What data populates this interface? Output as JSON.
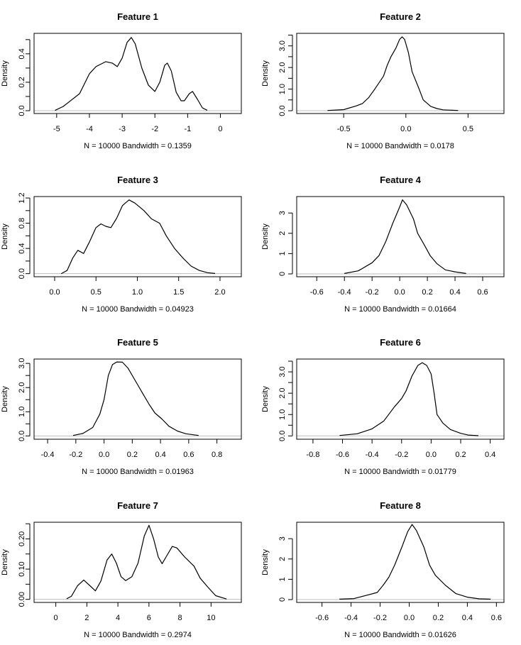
{
  "chart_data": [
    {
      "type": "line",
      "title": "Feature  1",
      "xlabel": "N = 10000   Bandwidth = 0.1359",
      "ylabel": "Density",
      "xlim": [
        -5.69,
        0.64
      ],
      "ylim": [
        -0.02,
        0.544
      ],
      "xticks": [
        -5,
        -4,
        -3,
        -2,
        -1,
        0
      ],
      "xticklabels": [
        "-5",
        "-4",
        "-3",
        "-2",
        "-1",
        "0"
      ],
      "yticks": [
        0,
        0.1,
        0.2,
        0.3,
        0.4,
        0.5
      ],
      "yticklabels": [
        "0.0",
        "",
        "0.2",
        "",
        "0.4",
        ""
      ],
      "x": [
        -5.05,
        -4.8,
        -4.6,
        -4.3,
        -4.0,
        -3.8,
        -3.5,
        -3.3,
        -3.15,
        -3.0,
        -2.85,
        -2.72,
        -2.6,
        -2.4,
        -2.2,
        -2.0,
        -1.85,
        -1.7,
        -1.62,
        -1.5,
        -1.35,
        -1.2,
        -1.1,
        -0.95,
        -0.85,
        -0.7,
        -0.55,
        -0.4
      ],
      "y": [
        0.002,
        0.03,
        0.066,
        0.12,
        0.26,
        0.31,
        0.345,
        0.335,
        0.31,
        0.37,
        0.48,
        0.515,
        0.47,
        0.3,
        0.18,
        0.135,
        0.2,
        0.32,
        0.335,
        0.28,
        0.13,
        0.07,
        0.07,
        0.12,
        0.135,
        0.08,
        0.02,
        0.003
      ]
    },
    {
      "type": "line",
      "title": "Feature  2",
      "xlabel": "N = 10000   Bandwidth = 0.0178",
      "ylabel": "Density",
      "xlim": [
        -0.878,
        0.789
      ],
      "ylim": [
        -0.13,
        3.58
      ],
      "xticks": [
        -0.5,
        0,
        0.5
      ],
      "xticklabels": [
        "-0.5",
        "0.0",
        "0.5"
      ],
      "yticks": [
        0,
        0.5,
        1,
        1.5,
        2,
        2.5,
        3,
        3.5
      ],
      "yticklabels": [
        "0.0",
        "",
        "1.0",
        "",
        "2.0",
        "",
        "3.0",
        ""
      ],
      "x": [
        -0.63,
        -0.5,
        -0.4,
        -0.35,
        -0.3,
        -0.25,
        -0.18,
        -0.15,
        -0.12,
        -0.08,
        -0.05,
        -0.03,
        -0.01,
        0.02,
        0.05,
        0.1,
        0.14,
        0.2,
        0.25,
        0.3,
        0.42
      ],
      "y": [
        0.01,
        0.05,
        0.22,
        0.33,
        0.6,
        1.0,
        1.6,
        2.1,
        2.5,
        2.9,
        3.3,
        3.42,
        3.3,
        2.7,
        1.8,
        1.1,
        0.5,
        0.2,
        0.1,
        0.04,
        0.01
      ]
    },
    {
      "type": "line",
      "title": "Feature  3",
      "xlabel": "N = 10000   Bandwidth = 0.04923",
      "ylabel": "Density",
      "xlim": [
        -0.249,
        2.258
      ],
      "ylim": [
        -0.049,
        1.223
      ],
      "xticks": [
        0,
        0.5,
        1,
        1.5,
        2
      ],
      "xticklabels": [
        "0.0",
        "0.5",
        "1.0",
        "1.5",
        "2.0"
      ],
      "yticks": [
        0,
        0.2,
        0.4,
        0.6,
        0.8,
        1.0,
        1.2
      ],
      "yticklabels": [
        "0.0",
        "",
        "0.4",
        "",
        "0.8",
        "",
        "1.2"
      ],
      "x": [
        0.08,
        0.15,
        0.22,
        0.28,
        0.35,
        0.42,
        0.5,
        0.56,
        0.62,
        0.68,
        0.75,
        0.82,
        0.9,
        0.97,
        1.08,
        1.17,
        1.27,
        1.35,
        1.45,
        1.55,
        1.65,
        1.75,
        1.85,
        1.94
      ],
      "y": [
        0,
        0.05,
        0.25,
        0.37,
        0.32,
        0.5,
        0.73,
        0.79,
        0.75,
        0.73,
        0.88,
        1.08,
        1.17,
        1.12,
        1.0,
        0.87,
        0.8,
        0.6,
        0.4,
        0.25,
        0.12,
        0.05,
        0.015,
        0.003
      ]
    },
    {
      "type": "line",
      "title": "Feature  4",
      "xlabel": "N = 10000   Bandwidth = 0.01664",
      "ylabel": "Density",
      "xlim": [
        -0.745,
        0.754
      ],
      "ylim": [
        -0.14,
        3.81
      ],
      "xticks": [
        -0.6,
        -0.4,
        -0.2,
        0,
        0.2,
        0.4,
        0.6
      ],
      "xticklabels": [
        "-0.6",
        "-0.4",
        "-0.2",
        "0.0",
        "0.2",
        "0.4",
        "0.6"
      ],
      "yticks": [
        0,
        1,
        2,
        3
      ],
      "yticklabels": [
        "0",
        "1",
        "2",
        "3"
      ],
      "x": [
        -0.4,
        -0.3,
        -0.2,
        -0.15,
        -0.1,
        -0.05,
        0,
        0.02,
        0.05,
        0.1,
        0.13,
        0.18,
        0.22,
        0.27,
        0.33,
        0.4,
        0.48
      ],
      "y": [
        0.02,
        0.15,
        0.55,
        0.9,
        1.6,
        2.5,
        3.3,
        3.65,
        3.4,
        2.7,
        2.0,
        1.4,
        0.9,
        0.5,
        0.2,
        0.1,
        0.02
      ]
    },
    {
      "type": "line",
      "title": "Feature  5",
      "xlabel": "N = 10000   Bandwidth = 0.01963",
      "ylabel": "Density",
      "xlim": [
        -0.496,
        0.973
      ],
      "ylim": [
        -0.137,
        3.18
      ],
      "xticks": [
        -0.4,
        -0.2,
        0,
        0.2,
        0.4,
        0.6,
        0.8
      ],
      "xticklabels": [
        "-0.4",
        "-0.2",
        "0.0",
        "0.2",
        "0.4",
        "0.6",
        "0.8"
      ],
      "yticks": [
        0,
        0.5,
        1,
        1.5,
        2,
        2.5,
        3
      ],
      "yticklabels": [
        "0.0",
        "",
        "1.0",
        "",
        "2.0",
        "",
        "3.0"
      ],
      "x": [
        -0.22,
        -0.15,
        -0.08,
        -0.03,
        0,
        0.03,
        0.06,
        0.09,
        0.13,
        0.17,
        0.22,
        0.28,
        0.32,
        0.36,
        0.41,
        0.46,
        0.52,
        0.58,
        0.67
      ],
      "y": [
        0.02,
        0.1,
        0.35,
        0.9,
        1.5,
        2.5,
        2.95,
        3.06,
        3.05,
        2.8,
        2.3,
        1.7,
        1.3,
        0.95,
        0.7,
        0.4,
        0.2,
        0.09,
        0.02
      ]
    },
    {
      "type": "line",
      "title": "Feature  6",
      "xlabel": "N = 10000   Bandwidth = 0.01779",
      "ylabel": "Density",
      "xlim": [
        -0.91,
        0.493
      ],
      "ylim": [
        -0.156,
        3.6
      ],
      "xticks": [
        -0.8,
        -0.6,
        -0.4,
        -0.2,
        0,
        0.2,
        0.4
      ],
      "xticklabels": [
        "-0.8",
        "-0.6",
        "-0.4",
        "-0.2",
        "0.0",
        "0.2",
        "0.4"
      ],
      "yticks": [
        0,
        0.5,
        1,
        1.5,
        2,
        2.5,
        3,
        3.5
      ],
      "yticklabels": [
        "0.0",
        "",
        "1.0",
        "",
        "2.0",
        "",
        "3.0",
        ""
      ],
      "x": [
        -0.62,
        -0.5,
        -0.4,
        -0.32,
        -0.25,
        -0.2,
        -0.17,
        -0.13,
        -0.09,
        -0.06,
        -0.03,
        0,
        0.02,
        0.04,
        0.08,
        0.13,
        0.2,
        0.25,
        0.32
      ],
      "y": [
        0.02,
        0.1,
        0.33,
        0.7,
        1.35,
        1.75,
        2.1,
        2.8,
        3.3,
        3.43,
        3.3,
        2.9,
        2.0,
        1.0,
        0.6,
        0.3,
        0.12,
        0.04,
        0.01
      ]
    },
    {
      "type": "line",
      "title": "Feature  7",
      "xlabel": "N = 10000   Bandwidth = 0.2974",
      "ylabel": "Density",
      "xlim": [
        -1.4,
        11.95
      ],
      "ylim": [
        -0.0102,
        0.255
      ],
      "xticks": [
        0,
        2,
        4,
        6,
        8,
        10
      ],
      "xticklabels": [
        "0",
        "2",
        "4",
        "6",
        "8",
        "10"
      ],
      "yticks": [
        0,
        0.05,
        0.1,
        0.15,
        0.2,
        0.25
      ],
      "yticklabels": [
        "0.00",
        "",
        "0.10",
        "",
        "0.20",
        ""
      ],
      "x": [
        0.7,
        1.0,
        1.4,
        1.8,
        2.2,
        2.55,
        2.9,
        3.3,
        3.6,
        3.9,
        4.2,
        4.5,
        4.9,
        5.3,
        5.7,
        6.0,
        6.3,
        6.6,
        6.85,
        7.1,
        7.5,
        7.8,
        8.3,
        8.9,
        9.3,
        9.8,
        10.3,
        11.0
      ],
      "y": [
        0.002,
        0.01,
        0.045,
        0.064,
        0.045,
        0.028,
        0.06,
        0.13,
        0.15,
        0.12,
        0.075,
        0.062,
        0.075,
        0.12,
        0.21,
        0.245,
        0.2,
        0.14,
        0.118,
        0.14,
        0.175,
        0.17,
        0.14,
        0.11,
        0.07,
        0.04,
        0.012,
        0.001
      ]
    },
    {
      "type": "line",
      "title": "Feature  8",
      "xlabel": "N = 10000   Bandwidth = 0.01626",
      "ylabel": "Density",
      "xlim": [
        -0.774,
        0.652
      ],
      "ylim": [
        -0.14,
        3.81
      ],
      "xticks": [
        -0.6,
        -0.4,
        -0.2,
        0,
        0.2,
        0.4,
        0.6
      ],
      "xticklabels": [
        "-0.6",
        "-0.4",
        "-0.2",
        "0.0",
        "0.2",
        "0.4",
        "0.6"
      ],
      "yticks": [
        0,
        1,
        2,
        3
      ],
      "yticklabels": [
        "0",
        "1",
        "2",
        "3"
      ],
      "x": [
        -0.48,
        -0.38,
        -0.3,
        -0.22,
        -0.18,
        -0.14,
        -0.1,
        -0.05,
        -0.01,
        0.02,
        0.05,
        0.1,
        0.14,
        0.18,
        0.25,
        0.32,
        0.4,
        0.48,
        0.56
      ],
      "y": [
        0.02,
        0.05,
        0.2,
        0.35,
        0.7,
        1.1,
        1.7,
        2.6,
        3.35,
        3.7,
        3.4,
        2.6,
        1.7,
        1.2,
        0.7,
        0.3,
        0.12,
        0.04,
        0.02
      ]
    }
  ],
  "colors": {
    "curve": "#000000",
    "zero_line": "#bebebe",
    "frame": "#000000"
  }
}
